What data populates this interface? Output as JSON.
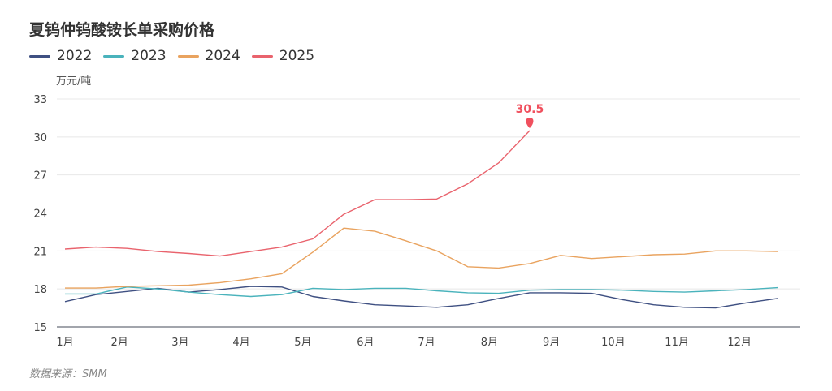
{
  "chart_data": {
    "type": "line",
    "title": "夏钨仲钨酸铵长单采购价格",
    "ylabel": "万元/吨",
    "xlabel": "",
    "ylim": [
      15,
      33
    ],
    "yticks": [
      15,
      18,
      21,
      24,
      27,
      30,
      33
    ],
    "grid": true,
    "legend_position": "top-left",
    "x_count": 24,
    "x_ticks": [
      {
        "label": "1月",
        "at": 0
      },
      {
        "label": "2月",
        "at": 1.76
      },
      {
        "label": "3月",
        "at": 3.72
      },
      {
        "label": "4月",
        "at": 5.69
      },
      {
        "label": "5月",
        "at": 7.68
      },
      {
        "label": "6月",
        "at": 9.7
      },
      {
        "label": "7月",
        "at": 11.67
      },
      {
        "label": "8月",
        "at": 13.7
      },
      {
        "label": "9月",
        "at": 15.7
      },
      {
        "label": "10月",
        "at": 17.7
      },
      {
        "label": "11月",
        "at": 19.75
      },
      {
        "label": "12月",
        "at": 21.77
      }
    ],
    "series": [
      {
        "name": "2022",
        "color": "#3f5082",
        "values": [
          17.0,
          17.55,
          17.8,
          18.05,
          17.75,
          17.95,
          18.2,
          18.15,
          17.4,
          17.05,
          16.75,
          16.65,
          16.55,
          16.75,
          17.25,
          17.7,
          17.7,
          17.65,
          17.15,
          16.75,
          16.55,
          16.5,
          16.9,
          17.25
        ]
      },
      {
        "name": "2023",
        "color": "#4ab3bc",
        "values": [
          17.6,
          17.6,
          18.15,
          18.0,
          17.75,
          17.55,
          17.4,
          17.55,
          18.05,
          17.95,
          18.05,
          18.05,
          17.85,
          17.7,
          17.65,
          17.9,
          17.95,
          17.95,
          17.9,
          17.8,
          17.75,
          17.85,
          17.95,
          18.1
        ]
      },
      {
        "name": "2024",
        "color": "#e9a35f",
        "values": [
          18.07,
          18.07,
          18.2,
          18.25,
          18.3,
          18.5,
          18.8,
          19.2,
          20.9,
          22.8,
          22.55,
          21.8,
          21.0,
          19.75,
          19.65,
          20.0,
          20.65,
          20.4,
          20.55,
          20.7,
          20.75,
          21.0,
          21.0,
          20.95
        ]
      },
      {
        "name": "2025",
        "color": "#e9636d",
        "values": [
          21.15,
          21.3,
          21.2,
          20.95,
          20.8,
          20.6,
          20.95,
          21.3,
          21.95,
          23.9,
          25.05,
          25.05,
          25.1,
          26.3,
          27.95,
          30.5
        ]
      }
    ],
    "annotations": [
      {
        "series": "2025",
        "label": "30.5",
        "value": 30.5,
        "color": "#f0505e"
      }
    ]
  },
  "source": "数据来源：SMM"
}
